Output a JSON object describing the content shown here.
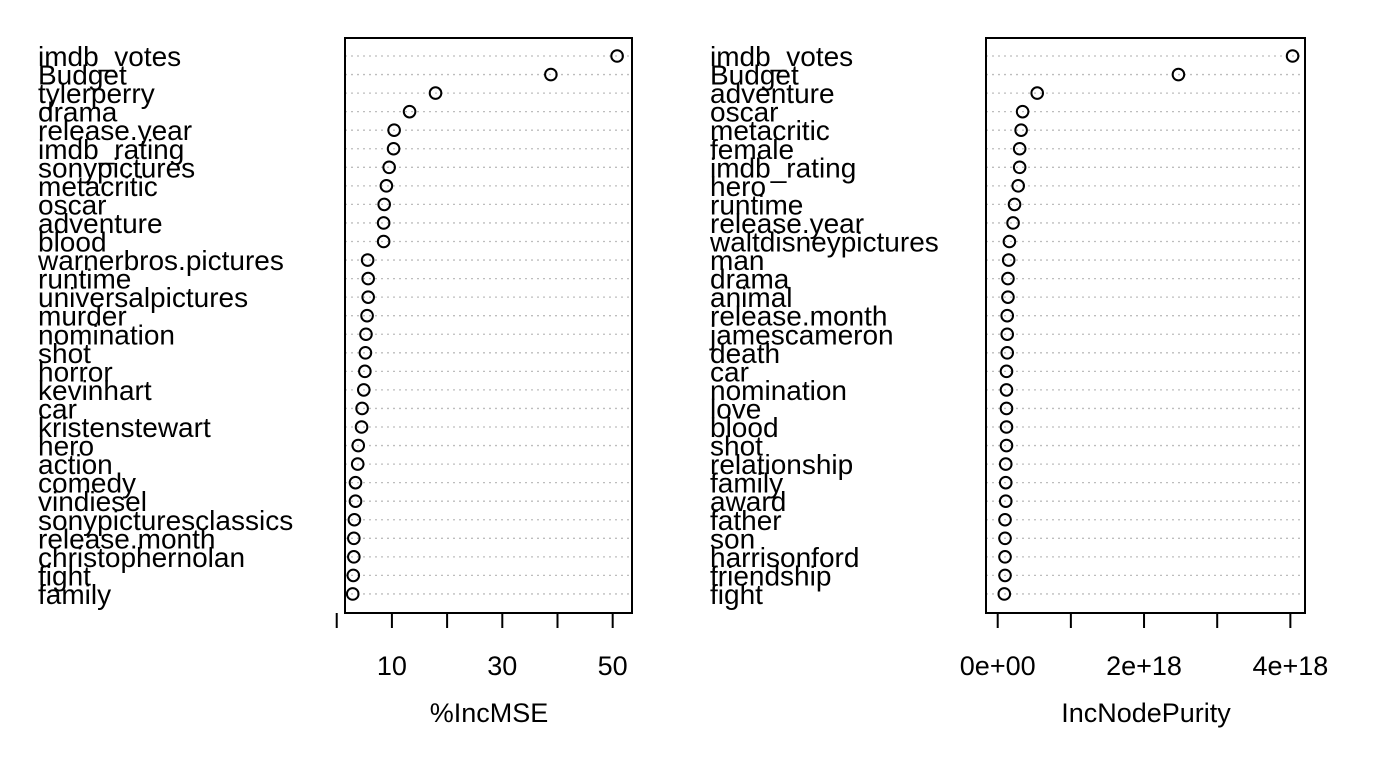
{
  "chart_data": [
    {
      "type": "scatter",
      "variant": "dotchart",
      "xlabel": "%IncMSE",
      "xlim": [
        1.5,
        53.5
      ],
      "xticks": [
        0,
        10,
        20,
        30,
        40,
        50
      ],
      "xtick_labels": [
        "10",
        "30",
        "50"
      ],
      "xtick_label_values": [
        10,
        30,
        50
      ],
      "grid": "dotted horizontal",
      "categories": [
        "imdb_votes",
        "Budget",
        "tylerperry",
        "drama",
        "release.year",
        "imdb_rating",
        "sonypictures",
        "metacritic",
        "oscar",
        "adventure",
        "blood",
        "warnerbros.pictures",
        "runtime",
        "universalpictures",
        "murder",
        "nomination",
        "shot",
        "horror",
        "kevinhart",
        "car",
        "kristenstewart",
        "hero",
        "action",
        "comedy",
        "vindiesel",
        "sonypicturesclassics",
        "release.month",
        "christophernolan",
        "fight",
        "family"
      ],
      "values": [
        50.8,
        38.8,
        17.9,
        13.2,
        10.4,
        10.3,
        9.5,
        9.0,
        8.6,
        8.5,
        8.5,
        5.6,
        5.7,
        5.7,
        5.5,
        5.3,
        5.2,
        5.1,
        4.9,
        4.6,
        4.5,
        3.9,
        3.8,
        3.4,
        3.4,
        3.2,
        3.1,
        3.1,
        3.0,
        2.9
      ]
    },
    {
      "type": "scatter",
      "variant": "dotchart",
      "xlabel": "IncNodePurity",
      "xlim": [
        -1.6e+17,
        4.2e+18
      ],
      "xticks": [
        0,
        1e+18,
        2e+18,
        3e+18,
        4e+18
      ],
      "xtick_labels": [
        "0e+00",
        "2e+18",
        "4e+18"
      ],
      "xtick_label_values": [
        0,
        2e+18,
        4e+18
      ],
      "grid": "dotted horizontal",
      "categories": [
        "imdb_votes",
        "Budget",
        "adventure",
        "oscar",
        "metacritic",
        "female",
        "imdb_rating",
        "hero",
        "runtime",
        "release.year",
        "waltdisneypictures",
        "man",
        "drama",
        "animal",
        "release.month",
        "jamescameron",
        "death",
        "car",
        "nomination",
        "love",
        "blood",
        "shot",
        "relationship",
        "family",
        "award",
        "father",
        "son",
        "harrisonford",
        "friendship",
        "fight"
      ],
      "values": [
        4.03e+18,
        2.47e+18,
        5.4e+17,
        3.4e+17,
        3.2e+17,
        3e+17,
        3e+17,
        2.8e+17,
        2.3e+17,
        2.1e+17,
        1.6e+17,
        1.5e+17,
        1.4e+17,
        1.4e+17,
        1.3e+17,
        1.3e+17,
        1.3e+17,
        1.2e+17,
        1.2e+17,
        1.2e+17,
        1.2e+17,
        1.2e+17,
        1.1e+17,
        1.1e+17,
        1.1e+17,
        1e+17,
        1e+17,
        1e+17,
        1e+17,
        9e+16
      ]
    }
  ]
}
